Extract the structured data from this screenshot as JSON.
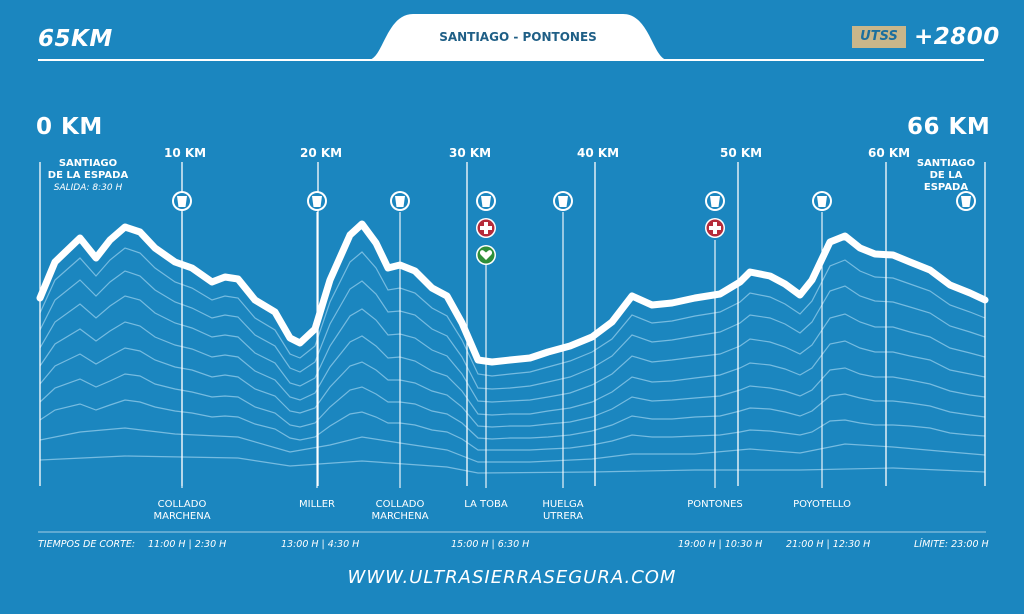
{
  "header": {
    "distance": "65KM",
    "route": "SANTIAGO - PONTONES",
    "badge": "UTSS",
    "elevation": "+2800"
  },
  "axis": {
    "start_label": "0 KM",
    "end_label": "66 KM",
    "ticks": [
      "10 KM",
      "20 KM",
      "30 KM",
      "40 KM",
      "50 KM",
      "60 KM"
    ]
  },
  "start": {
    "line1": "SANTIAGO",
    "line2": "DE LA ESPADA",
    "departure": "SALIDA: 8:30 H"
  },
  "finish": {
    "line1": "SANTIAGO",
    "line2": "DE LA ESPADA"
  },
  "icons": {
    "water": "water-glass-icon",
    "medical": "first-aid-cross-icon",
    "heart": "heart-icon"
  },
  "colors": {
    "background": "#1b86bf",
    "profile": "#ffffff",
    "badge": "#c9b68a",
    "medical": "#b52b3a",
    "heart": "#2f8f3a"
  },
  "stations": [
    {
      "line1": "COLLADO",
      "line2": "MARCHENA"
    },
    {
      "line1": "MILLER",
      "line2": ""
    },
    {
      "line1": "COLLADO",
      "line2": "MARCHENA"
    },
    {
      "line1": "LA TOBA",
      "line2": ""
    },
    {
      "line1": "HUELGA",
      "line2": "UTRERA"
    },
    {
      "line1": "PONTONES",
      "line2": ""
    },
    {
      "line1": "POYOTELLO",
      "line2": ""
    }
  ],
  "cutoffs": {
    "label": "TIEMPOS DE CORTE:",
    "times": [
      "11:00 H | 2:30 H",
      "13:00 H | 4:30 H",
      "15:00 H | 6:30 H",
      "19:00 H | 10:30 H",
      "21:00 H | 12:30 H"
    ],
    "limit": "LÍMITE: 23:00 H"
  },
  "footer": {
    "url": "WWW.ULTRASIERRASEGURA.COM"
  }
}
